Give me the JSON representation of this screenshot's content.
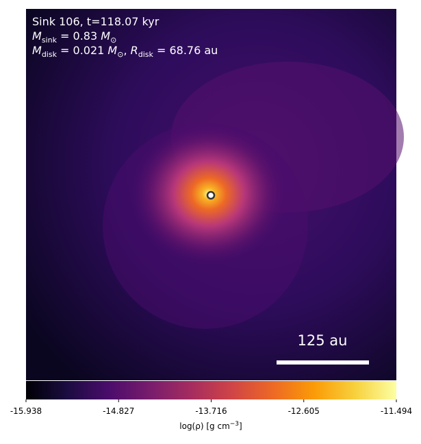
{
  "chart_data": {
    "type": "image",
    "annotation_lines": [
      [
        "Sink 106, t=118.07 kyr"
      ],
      [
        "M",
        "sink",
        " = 0.83 ",
        "M",
        "⊙"
      ],
      [
        "M",
        "disk",
        " = 0.021 ",
        "M",
        "⊙",
        ", ",
        "R",
        "disk",
        " = 68.76 au"
      ]
    ],
    "scale_bar_label": "125 au",
    "colormap": "inferno",
    "colorbar_label": [
      "log(ρ) [g cm",
      "−3",
      "]"
    ],
    "clim": [
      -15.938,
      -11.494
    ],
    "cticks": [
      -15.938,
      -14.827,
      -13.716,
      -12.605,
      -11.494
    ]
  }
}
